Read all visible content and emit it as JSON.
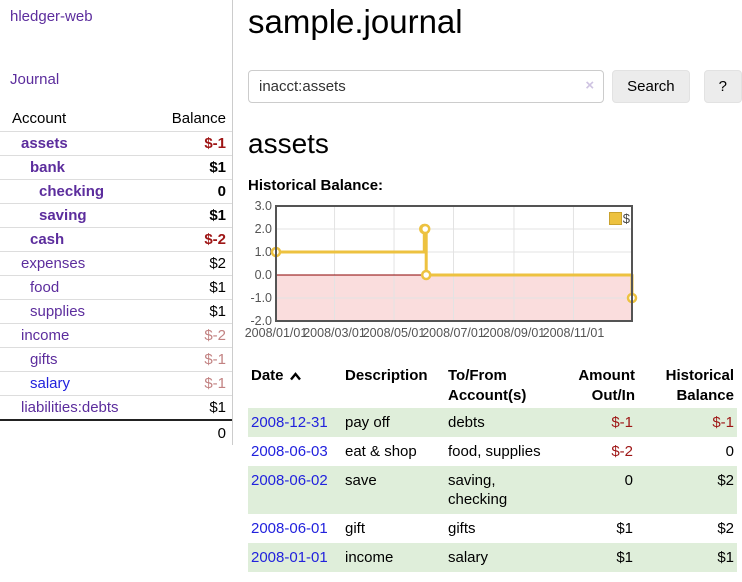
{
  "app": {
    "title": "hledger-web",
    "nav_journal": "Journal"
  },
  "sidebar": {
    "header": {
      "account": "Account",
      "balance": "Balance"
    },
    "rows": [
      {
        "name": "assets",
        "balance": "$-1",
        "depth": 1,
        "bold": true,
        "neg": "strong"
      },
      {
        "name": "bank",
        "balance": "$1",
        "depth": 2,
        "bold": true
      },
      {
        "name": "checking",
        "balance": "0",
        "depth": 3,
        "bold": true
      },
      {
        "name": "saving",
        "balance": "$1",
        "depth": 3,
        "bold": true
      },
      {
        "name": "cash",
        "balance": "$-2",
        "depth": 2,
        "bold": true,
        "neg": "strong"
      },
      {
        "name": "expenses",
        "balance": "$2",
        "depth": 1
      },
      {
        "name": "food",
        "balance": "$1",
        "depth": 2
      },
      {
        "name": "supplies",
        "balance": "$1",
        "depth": 2
      },
      {
        "name": "income",
        "balance": "$-2",
        "depth": 1,
        "neg": "muted"
      },
      {
        "name": "gifts",
        "balance": "$-1",
        "depth": 2,
        "neg": "muted"
      },
      {
        "name": "salary",
        "balance": "$-1",
        "depth": 2,
        "neg": "muted",
        "blue": true
      },
      {
        "name": "liabilities:debts",
        "balance": "$1",
        "depth": 1
      }
    ],
    "total": "0"
  },
  "main": {
    "title": "sample.journal",
    "search": {
      "value": "inacct:assets",
      "clear_icon": "×",
      "button": "Search",
      "help": "?"
    },
    "account_title": "assets"
  },
  "chart_data": {
    "type": "line",
    "step": true,
    "title": "Historical Balance:",
    "legend": "$",
    "series": [
      {
        "name": "$",
        "color": "#EDC240",
        "points": [
          [
            "2008-01-01",
            1
          ],
          [
            "2008-06-01",
            2
          ],
          [
            "2008-06-02",
            2
          ],
          [
            "2008-06-03",
            0
          ],
          [
            "2008-12-31",
            -1
          ]
        ]
      }
    ],
    "xlim": [
      "2008-01-01",
      "2008-12-31"
    ],
    "ylim": [
      -2,
      3
    ],
    "yticks": [
      3,
      2,
      1,
      0,
      -1,
      -2
    ],
    "ytick_labels": [
      "3.0",
      "2.0",
      "1.0",
      "0.0",
      "-1.0",
      "-2.0"
    ],
    "xticks": [
      "2008-01-01",
      "2008-03-01",
      "2008-05-01",
      "2008-07-01",
      "2008-09-01",
      "2008-11-01"
    ],
    "xtick_labels": [
      "2008/01/01",
      "2008/03/01",
      "2008/05/01",
      "2008/07/01",
      "2008/09/01",
      "2008/11/01"
    ],
    "grid_on": true,
    "legend_position": "top-right",
    "colors": {
      "negative_region": "#fadddd",
      "zero_line": "#8b0000",
      "grid": "#e3e3e3",
      "border": "#545454",
      "axis_text": "#545454"
    }
  },
  "register": {
    "columns": [
      "Date",
      "Description",
      "To/From Account(s)",
      "Amount Out/In",
      "Historical Balance"
    ],
    "sort": {
      "column": "Date",
      "direction": "ascending"
    },
    "rows": [
      {
        "date": "2008-12-31",
        "description": "pay off",
        "accounts": "debts",
        "amount": "$-1",
        "balance": "$-1"
      },
      {
        "date": "2008-06-03",
        "description": "eat & shop",
        "accounts": "food, supplies",
        "amount": "$-2",
        "balance": "0"
      },
      {
        "date": "2008-06-02",
        "description": "save",
        "accounts": "saving, checking",
        "amount": "0",
        "balance": "$2"
      },
      {
        "date": "2008-06-01",
        "description": "gift",
        "accounts": "gifts",
        "amount": "$1",
        "balance": "$2"
      },
      {
        "date": "2008-01-01",
        "description": "income",
        "accounts": "salary",
        "amount": "$1",
        "balance": "$1"
      }
    ]
  }
}
